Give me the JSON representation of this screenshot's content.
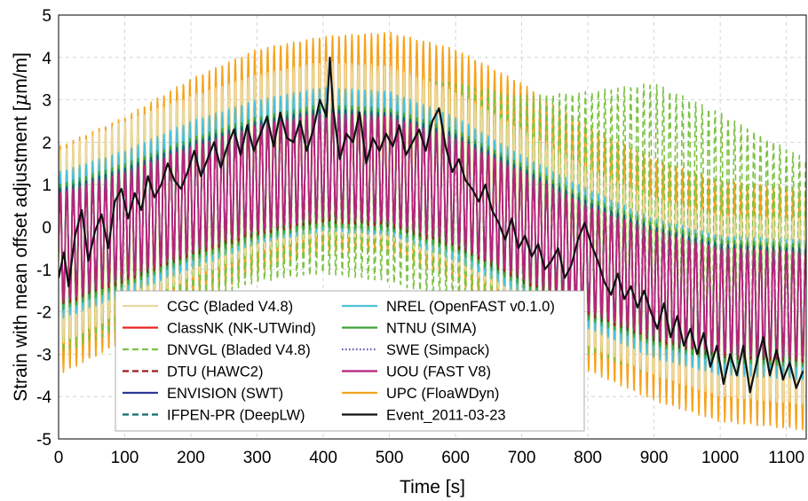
{
  "chart_data": {
    "type": "line",
    "title": "",
    "xlabel": "Time [s]",
    "ylabel": "Strain with mean offset adjustment [",
    "ylabel_mu": "μ",
    "ylabel_unit": "m/m]",
    "xlim": [
      0,
      1130
    ],
    "ylim": [
      -5,
      5
    ],
    "xticks": [
      0,
      100,
      200,
      300,
      400,
      500,
      600,
      700,
      800,
      900,
      1000,
      1100
    ],
    "yticks": [
      -5,
      -4,
      -3,
      -2,
      -1,
      0,
      1,
      2,
      3,
      4,
      5
    ],
    "grid": true,
    "legend_position": "lower-left (inside)",
    "oscillation_period_s": 9.8,
    "series": [
      {
        "name": "CGC (Bladed V4.8)",
        "color": "#e8d9a0",
        "dash": "solid",
        "envelope_x": [
          0,
          100,
          200,
          300,
          400,
          500,
          600,
          700,
          800,
          900,
          1000,
          1130
        ],
        "upper": [
          1.8,
          2.5,
          3.1,
          3.6,
          3.9,
          3.8,
          3.2,
          2.3,
          1.4,
          0.7,
          0.3,
          0.2
        ],
        "lower": [
          -2.8,
          -2.0,
          -1.2,
          -0.6,
          -0.2,
          -0.3,
          -0.9,
          -1.8,
          -2.8,
          -3.5,
          -4.0,
          -4.2
        ]
      },
      {
        "name": "ClassNK (NK-UTWind)",
        "color": "#e8231e",
        "dash": "solid",
        "envelope_x": [
          0,
          100,
          200,
          300,
          400,
          500,
          600,
          700,
          800,
          900,
          1000,
          1130
        ],
        "upper": [
          0.8,
          1.3,
          1.9,
          2.4,
          2.7,
          2.6,
          2.1,
          1.3,
          0.5,
          -0.1,
          -0.5,
          -0.6
        ],
        "lower": [
          -1.8,
          -1.2,
          -0.6,
          -0.1,
          0.2,
          0.1,
          -0.4,
          -1.2,
          -2.0,
          -2.6,
          -3.0,
          -3.1
        ]
      },
      {
        "name": "DNVGL (Bladed V4.8)",
        "color": "#7dc242",
        "dash": "dashed",
        "envelope_x": [
          0,
          100,
          200,
          300,
          400,
          500,
          600,
          700,
          800,
          900,
          1000,
          1130
        ],
        "upper": [
          1.6,
          2.2,
          2.9,
          3.3,
          3.6,
          3.6,
          3.4,
          3.1,
          3.2,
          3.4,
          2.7,
          1.6
        ],
        "lower": [
          -3.0,
          -2.4,
          -1.8,
          -1.3,
          -1.1,
          -1.3,
          -1.8,
          -2.4,
          -3.0,
          -3.5,
          -3.7,
          -3.6
        ]
      },
      {
        "name": "DTU (HAWC2)",
        "color": "#9b1b1b",
        "dash": "dashed",
        "envelope_x": [
          0,
          100,
          200,
          300,
          400,
          500,
          600,
          700,
          800,
          900,
          1000,
          1130
        ],
        "upper": [
          0.7,
          1.2,
          1.8,
          2.3,
          2.6,
          2.5,
          2.0,
          1.2,
          0.4,
          -0.2,
          -0.6,
          -0.7
        ],
        "lower": [
          -1.9,
          -1.3,
          -0.7,
          -0.2,
          0.1,
          0.0,
          -0.5,
          -1.3,
          -2.1,
          -2.7,
          -3.1,
          -3.2
        ]
      },
      {
        "name": "ENVISION (SWT)",
        "color": "#2b3a9b",
        "dash": "solid",
        "envelope_x": [
          0,
          100,
          200,
          300,
          400,
          500,
          600,
          700,
          800,
          900,
          1000,
          1130
        ],
        "upper": [
          0.9,
          1.4,
          2.0,
          2.5,
          2.8,
          2.7,
          2.2,
          1.4,
          0.6,
          0.0,
          -0.4,
          -0.5
        ],
        "lower": [
          -1.7,
          -1.1,
          -0.5,
          0.0,
          0.3,
          0.2,
          -0.3,
          -1.1,
          -1.9,
          -2.5,
          -2.9,
          -3.0
        ]
      },
      {
        "name": "IFPEN-PR (DeepLW)",
        "color": "#0f6b72",
        "dash": "dashed",
        "envelope_x": [
          0,
          100,
          200,
          300,
          400,
          500,
          600,
          700,
          800,
          900,
          1000,
          1130
        ],
        "upper": [
          0.9,
          1.4,
          2.0,
          2.5,
          2.8,
          2.7,
          2.2,
          1.4,
          0.6,
          0.0,
          -0.4,
          -0.5
        ],
        "lower": [
          -1.7,
          -1.1,
          -0.5,
          0.0,
          0.3,
          0.2,
          -0.3,
          -1.1,
          -1.9,
          -2.5,
          -2.9,
          -3.0
        ]
      },
      {
        "name": "NREL (OpenFAST v0.1.0)",
        "color": "#4bc0d9",
        "dash": "solid",
        "envelope_x": [
          0,
          100,
          200,
          300,
          400,
          500,
          600,
          700,
          800,
          900,
          1000,
          1130
        ],
        "upper": [
          1.3,
          1.8,
          2.5,
          3.0,
          3.3,
          3.2,
          2.6,
          1.7,
          0.9,
          0.2,
          -0.2,
          -0.3
        ],
        "lower": [
          -2.2,
          -1.6,
          -1.0,
          -0.4,
          -0.1,
          -0.2,
          -0.8,
          -1.6,
          -2.4,
          -3.1,
          -3.5,
          -3.6
        ]
      },
      {
        "name": "NTNU (SIMA)",
        "color": "#3aa43a",
        "dash": "solid",
        "envelope_x": [
          0,
          100,
          200,
          300,
          400,
          500,
          600,
          700,
          800,
          900,
          1000,
          1130
        ],
        "upper": [
          1.0,
          1.5,
          2.1,
          2.6,
          2.9,
          2.8,
          2.3,
          1.5,
          0.7,
          0.1,
          -0.3,
          -0.4
        ],
        "lower": [
          -2.0,
          -1.4,
          -0.8,
          -0.3,
          0.0,
          -0.1,
          -0.6,
          -1.4,
          -2.2,
          -2.8,
          -3.2,
          -3.3
        ]
      },
      {
        "name": "SWE (Simpack)",
        "color": "#5b55a8",
        "dash": "dotted",
        "envelope_x": [
          0,
          100,
          200,
          300,
          400,
          500,
          600,
          700,
          800,
          900,
          1000,
          1130
        ],
        "upper": [
          0.8,
          1.3,
          1.9,
          2.4,
          2.7,
          2.6,
          2.1,
          1.3,
          0.5,
          -0.1,
          -0.5,
          -0.6
        ],
        "lower": [
          -1.8,
          -1.2,
          -0.6,
          -0.1,
          0.2,
          0.1,
          -0.4,
          -1.2,
          -2.0,
          -2.6,
          -3.0,
          -3.1
        ]
      },
      {
        "name": "UOU (FAST V8)",
        "color": "#b8237e",
        "dash": "solid",
        "envelope_x": [
          0,
          100,
          200,
          300,
          400,
          500,
          600,
          700,
          800,
          900,
          1000,
          1130
        ],
        "upper": [
          0.8,
          1.3,
          1.9,
          2.4,
          2.7,
          2.6,
          2.1,
          1.3,
          0.5,
          -0.1,
          -0.5,
          -0.6
        ],
        "lower": [
          -1.8,
          -1.2,
          -0.6,
          -0.1,
          0.2,
          0.1,
          -0.4,
          -1.2,
          -2.0,
          -2.6,
          -3.0,
          -3.1
        ]
      },
      {
        "name": "UPC (FloaWDyn)",
        "color": "#f5a31d",
        "dash": "solid",
        "envelope_x": [
          0,
          100,
          200,
          300,
          400,
          500,
          600,
          700,
          800,
          900,
          1000,
          1130
        ],
        "upper": [
          1.9,
          2.6,
          3.5,
          4.2,
          4.5,
          4.6,
          4.2,
          3.4,
          2.4,
          1.6,
          1.1,
          0.9
        ],
        "lower": [
          -3.5,
          -2.7,
          -1.8,
          -1.1,
          -0.6,
          -0.6,
          -1.3,
          -2.4,
          -3.4,
          -4.1,
          -4.6,
          -4.8
        ]
      },
      {
        "name": "Event_2011-03-23",
        "color": "#111111",
        "dash": "solid",
        "x": [
          0,
          8,
          15,
          25,
          35,
          45,
          55,
          65,
          75,
          85,
          95,
          105,
          115,
          125,
          135,
          145,
          155,
          165,
          175,
          185,
          195,
          205,
          215,
          225,
          235,
          245,
          255,
          265,
          275,
          285,
          295,
          305,
          315,
          325,
          335,
          345,
          355,
          365,
          375,
          385,
          395,
          405,
          410,
          415,
          425,
          435,
          445,
          455,
          465,
          475,
          485,
          495,
          505,
          515,
          525,
          535,
          545,
          555,
          565,
          575,
          585,
          595,
          605,
          615,
          625,
          635,
          645,
          655,
          665,
          675,
          685,
          695,
          705,
          715,
          725,
          735,
          745,
          755,
          765,
          775,
          785,
          795,
          805,
          815,
          825,
          835,
          845,
          855,
          865,
          875,
          885,
          895,
          905,
          915,
          925,
          935,
          945,
          955,
          965,
          975,
          985,
          995,
          1005,
          1015,
          1025,
          1035,
          1045,
          1055,
          1065,
          1075,
          1085,
          1095,
          1105,
          1115,
          1125
        ],
        "y": [
          -1.2,
          -0.6,
          -1.4,
          -0.2,
          0.4,
          -0.8,
          -0.1,
          0.3,
          -0.5,
          0.6,
          0.9,
          0.2,
          0.8,
          0.4,
          1.2,
          0.7,
          1.0,
          1.5,
          1.1,
          0.9,
          1.3,
          1.8,
          1.2,
          1.6,
          2.0,
          1.4,
          1.9,
          2.3,
          1.7,
          2.4,
          1.8,
          2.2,
          2.6,
          1.9,
          2.7,
          2.1,
          2.0,
          2.5,
          1.8,
          2.3,
          3.0,
          2.6,
          4.0,
          2.8,
          1.6,
          2.2,
          2.0,
          2.7,
          1.5,
          2.1,
          1.8,
          2.2,
          1.9,
          2.4,
          1.7,
          2.0,
          2.3,
          1.8,
          2.5,
          2.8,
          1.9,
          1.3,
          1.6,
          1.1,
          0.9,
          0.6,
          1.0,
          0.4,
          0.1,
          -0.3,
          0.2,
          -0.5,
          -0.2,
          -0.7,
          -0.4,
          -1.0,
          -0.8,
          -0.5,
          -1.2,
          -0.9,
          -0.3,
          0.1,
          -0.4,
          -0.8,
          -1.3,
          -1.6,
          -1.1,
          -1.7,
          -1.4,
          -1.9,
          -1.5,
          -2.0,
          -2.4,
          -1.8,
          -2.6,
          -2.1,
          -2.8,
          -2.4,
          -3.0,
          -2.5,
          -3.3,
          -2.8,
          -3.7,
          -3.0,
          -3.5,
          -2.8,
          -3.9,
          -3.2,
          -2.6,
          -3.5,
          -2.9,
          -3.6,
          -3.2,
          -3.8,
          -3.4
        ]
      }
    ]
  }
}
